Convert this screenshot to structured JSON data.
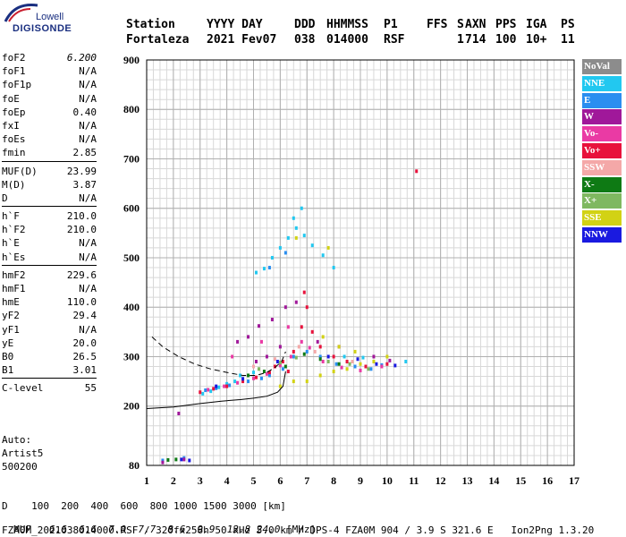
{
  "logo": {
    "line1": "Lowell",
    "line2": "DIGISONDE"
  },
  "header": {
    "row1": [
      "Station",
      "YYYY DAY",
      "DDD",
      "HHMMSS",
      "P1",
      "FFS",
      "S",
      "AXN",
      "PPS",
      "IGA",
      "PS"
    ],
    "row2": [
      "Fortaleza",
      "2021 Fev07",
      "038",
      "014000",
      "RSF",
      "",
      "1",
      "714",
      "100",
      "10+",
      "11"
    ]
  },
  "params": [
    {
      "group": [
        {
          "name": "foF2",
          "value": "6.200"
        },
        {
          "name": "foF1",
          "value": "N/A"
        },
        {
          "name": "foF1p",
          "value": "N/A"
        },
        {
          "name": "foE",
          "value": "N/A"
        },
        {
          "name": "foEp",
          "value": "0.40"
        },
        {
          "name": "fxI",
          "value": "N/A"
        },
        {
          "name": "foEs",
          "value": "N/A"
        },
        {
          "name": "fmin",
          "value": "2.85"
        }
      ]
    },
    {
      "group": [
        {
          "name": "MUF(D)",
          "value": "23.99"
        },
        {
          "name": "M(D)",
          "value": "3.87"
        },
        {
          "name": "D",
          "value": "N/A"
        }
      ]
    },
    {
      "group": [
        {
          "name": "h`F",
          "value": "210.0"
        },
        {
          "name": "h`F2",
          "value": "210.0"
        },
        {
          "name": "h`E",
          "value": "N/A"
        },
        {
          "name": "h`Es",
          "value": "N/A"
        }
      ]
    },
    {
      "group": [
        {
          "name": "hmF2",
          "value": "229.6"
        },
        {
          "name": "hmF1",
          "value": "N/A"
        },
        {
          "name": "hmE",
          "value": "110.0"
        },
        {
          "name": "yF2",
          "value": "29.4"
        },
        {
          "name": "yF1",
          "value": "N/A"
        },
        {
          "name": "yE",
          "value": "20.0"
        },
        {
          "name": "B0",
          "value": "26.5"
        },
        {
          "name": "B1",
          "value": "3.01"
        }
      ]
    },
    {
      "group": [
        {
          "name": "C-level",
          "value": "55"
        }
      ]
    }
  ],
  "auto": {
    "line1": "Auto:",
    "line2": "Artist5",
    "line3": "500200"
  },
  "legend": [
    {
      "label": "NoVal",
      "color": "#8c8c8c"
    },
    {
      "label": "NNE",
      "color": "#22c8f0"
    },
    {
      "label": "E",
      "color": "#2a8ef0"
    },
    {
      "label": "W",
      "color": "#a0189a"
    },
    {
      "label": "Vo-",
      "color": "#ea3aa4"
    },
    {
      "label": "Vo+",
      "color": "#e8123c"
    },
    {
      "label": "SSW",
      "color": "#f4a8a8"
    },
    {
      "label": "X-",
      "color": "#0e7a14"
    },
    {
      "label": "X+",
      "color": "#7fb860"
    },
    {
      "label": "SSE",
      "color": "#d2d214"
    },
    {
      "label": "NNW",
      "color": "#1a1ae0"
    }
  ],
  "footer": {
    "line1": "D    100  200  400  600  800 1000 1500 3000 [km]",
    "muf_label": "MUF",
    "muf_values": [
      "6.6",
      "6.6",
      "7.0",
      "7.7",
      "8.6",
      "9.9",
      "13.8",
      "24.0"
    ],
    "muf_unit": "[MHz]",
    "line3": "FZA0M_2021038014000.RSF / 320fx256h 50 kHz 5.0 km / DPS-4 FZA0M 904 / 3.9 S 321.6 E   Ion2Png 1.3.20"
  },
  "chart_data": {
    "type": "scatter",
    "title": "",
    "xlabel": "",
    "ylabel": "",
    "xlim": [
      1,
      17
    ],
    "ylim": [
      80,
      900
    ],
    "x_ticks": [
      1,
      2,
      3,
      4,
      5,
      6,
      7,
      8,
      9,
      10,
      11,
      12,
      13,
      14,
      15,
      16,
      17
    ],
    "y_ticks": [
      80,
      200,
      300,
      400,
      500,
      600,
      700,
      800,
      900
    ],
    "grid": true,
    "legend_position": "right",
    "series": [
      {
        "name": "NNE",
        "color": "#22c8f0",
        "points": [
          [
            3.1,
            225
          ],
          [
            3.4,
            230
          ],
          [
            3.7,
            238
          ],
          [
            4.0,
            245
          ],
          [
            4.3,
            250
          ],
          [
            4.6,
            255
          ],
          [
            5.1,
            470
          ],
          [
            5.4,
            478
          ],
          [
            5.7,
            500
          ],
          [
            6.0,
            520
          ],
          [
            6.3,
            540
          ],
          [
            6.6,
            560
          ],
          [
            6.9,
            545
          ],
          [
            7.2,
            525
          ],
          [
            7.6,
            505
          ],
          [
            8.0,
            480
          ],
          [
            6.5,
            580
          ],
          [
            6.8,
            600
          ],
          [
            4.5,
            262
          ],
          [
            5.0,
            268
          ],
          [
            8.4,
            300
          ],
          [
            9.1,
            298
          ],
          [
            10.7,
            290
          ]
        ]
      },
      {
        "name": "E",
        "color": "#2a8ef0",
        "points": [
          [
            3.2,
            232
          ],
          [
            3.6,
            236
          ],
          [
            4.1,
            242
          ],
          [
            4.8,
            250
          ],
          [
            5.3,
            256
          ],
          [
            5.6,
            262
          ],
          [
            6.1,
            275
          ],
          [
            6.5,
            300
          ],
          [
            7.0,
            310
          ],
          [
            7.5,
            300
          ],
          [
            8.1,
            285
          ],
          [
            8.8,
            280
          ],
          [
            9.4,
            275
          ],
          [
            9.8,
            283
          ],
          [
            2.4,
            95
          ],
          [
            1.6,
            90
          ],
          [
            5.6,
            480
          ],
          [
            6.2,
            510
          ]
        ]
      },
      {
        "name": "W",
        "color": "#a0189a",
        "points": [
          [
            4.4,
            330
          ],
          [
            4.8,
            340
          ],
          [
            5.2,
            362
          ],
          [
            5.7,
            375
          ],
          [
            6.2,
            400
          ],
          [
            6.6,
            410
          ],
          [
            5.1,
            290
          ],
          [
            5.5,
            300
          ],
          [
            6.0,
            320
          ],
          [
            7.4,
            330
          ],
          [
            8.2,
            320
          ],
          [
            9.5,
            300
          ],
          [
            10.1,
            292
          ],
          [
            2.2,
            185
          ],
          [
            2.4,
            92
          ],
          [
            1.6,
            86
          ]
        ]
      },
      {
        "name": "Vo-",
        "color": "#ea3aa4",
        "points": [
          [
            3.3,
            233
          ],
          [
            3.9,
            240
          ],
          [
            4.4,
            247
          ],
          [
            5.0,
            256
          ],
          [
            5.5,
            265
          ],
          [
            6.0,
            282
          ],
          [
            6.4,
            300
          ],
          [
            6.8,
            330
          ],
          [
            7.1,
            318
          ],
          [
            7.6,
            290
          ],
          [
            8.3,
            278
          ],
          [
            9.0,
            272
          ],
          [
            9.8,
            280
          ],
          [
            4.2,
            300
          ],
          [
            5.3,
            330
          ],
          [
            6.3,
            360
          ]
        ]
      },
      {
        "name": "Vo+",
        "color": "#e8123c",
        "points": [
          [
            3.0,
            228
          ],
          [
            3.5,
            235
          ],
          [
            4.0,
            240
          ],
          [
            4.6,
            250
          ],
          [
            5.1,
            258
          ],
          [
            5.6,
            268
          ],
          [
            6.1,
            290
          ],
          [
            6.5,
            310
          ],
          [
            6.8,
            360
          ],
          [
            7.0,
            400
          ],
          [
            6.9,
            430
          ],
          [
            7.2,
            350
          ],
          [
            7.5,
            320
          ],
          [
            8.0,
            300
          ],
          [
            8.5,
            290
          ],
          [
            9.2,
            280
          ],
          [
            10.0,
            285
          ],
          [
            11.1,
            675
          ],
          [
            5.8,
            280
          ],
          [
            6.3,
            270
          ]
        ]
      },
      {
        "name": "SSW",
        "color": "#f4a8a8",
        "points": [
          [
            5.0,
            280
          ],
          [
            5.8,
            295
          ],
          [
            6.7,
            320
          ],
          [
            7.3,
            310
          ],
          [
            8.7,
            290
          ]
        ]
      },
      {
        "name": "X-",
        "color": "#0e7a14",
        "points": [
          [
            4.8,
            262
          ],
          [
            5.4,
            270
          ],
          [
            6.2,
            280
          ],
          [
            6.9,
            305
          ],
          [
            7.5,
            295
          ],
          [
            8.2,
            285
          ],
          [
            2.1,
            92
          ],
          [
            1.8,
            91
          ]
        ]
      },
      {
        "name": "X+",
        "color": "#7fb860",
        "points": [
          [
            5.2,
            275
          ],
          [
            6.0,
            288
          ],
          [
            6.6,
            298
          ],
          [
            7.8,
            290
          ],
          [
            8.6,
            285
          ],
          [
            9.3,
            275
          ]
        ]
      },
      {
        "name": "SSE",
        "color": "#d2d214",
        "points": [
          [
            6.0,
            240
          ],
          [
            6.5,
            250
          ],
          [
            7.0,
            250
          ],
          [
            7.5,
            262
          ],
          [
            8.0,
            270
          ],
          [
            8.5,
            275
          ],
          [
            9.0,
            285
          ],
          [
            9.5,
            290
          ],
          [
            10.0,
            300
          ],
          [
            8.2,
            320
          ],
          [
            8.8,
            310
          ],
          [
            7.8,
            520
          ],
          [
            6.6,
            540
          ],
          [
            7.6,
            340
          ]
        ]
      },
      {
        "name": "NNW",
        "color": "#1a1ae0",
        "points": [
          [
            3.6,
            240
          ],
          [
            4.6,
            255
          ],
          [
            5.9,
            290
          ],
          [
            7.8,
            300
          ],
          [
            8.9,
            295
          ],
          [
            9.6,
            285
          ],
          [
            10.3,
            282
          ],
          [
            2.3,
            92
          ],
          [
            2.6,
            90
          ]
        ]
      }
    ],
    "curves": [
      {
        "style": "solid",
        "points": [
          [
            1.0,
            195
          ],
          [
            2.0,
            198
          ],
          [
            3.0,
            205
          ],
          [
            3.8,
            210
          ],
          [
            4.5,
            213
          ],
          [
            5.0,
            216
          ],
          [
            5.5,
            220
          ],
          [
            5.9,
            228
          ],
          [
            6.1,
            240
          ],
          [
            6.2,
            270
          ]
        ]
      },
      {
        "style": "dashed",
        "points": [
          [
            1.2,
            340
          ],
          [
            1.6,
            320
          ],
          [
            2.2,
            300
          ],
          [
            2.8,
            285
          ],
          [
            3.4,
            275
          ],
          [
            4.0,
            268
          ],
          [
            4.6,
            262
          ],
          [
            5.1,
            262
          ],
          [
            5.5,
            268
          ],
          [
            5.8,
            278
          ],
          [
            6.05,
            290
          ],
          [
            6.2,
            310
          ]
        ]
      }
    ]
  }
}
